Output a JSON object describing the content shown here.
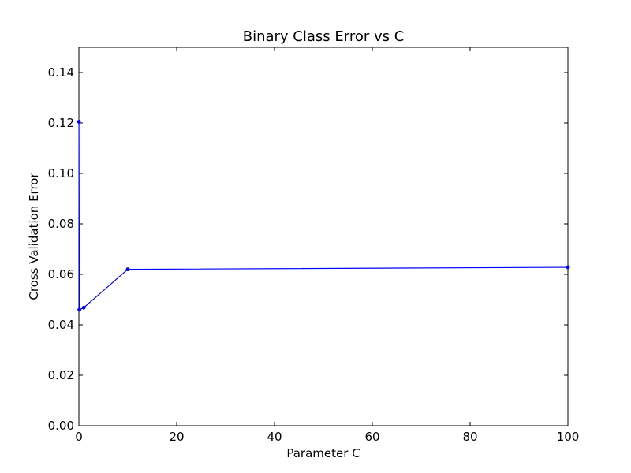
{
  "chart_data": {
    "type": "line",
    "title": "Binary Class Error vs C",
    "xlabel": "Parameter C",
    "ylabel": "Cross Validation Error",
    "xlim": [
      0,
      100
    ],
    "ylim": [
      0.0,
      0.15
    ],
    "xticks": [
      0,
      20,
      40,
      60,
      80,
      100
    ],
    "xtick_labels": [
      "0",
      "20",
      "40",
      "60",
      "80",
      "100"
    ],
    "yticks": [
      0.0,
      0.02,
      0.04,
      0.06,
      0.08,
      0.1,
      0.12,
      0.14
    ],
    "ytick_labels": [
      "0.00",
      "0.02",
      "0.04",
      "0.06",
      "0.08",
      "0.10",
      "0.12",
      "0.14"
    ],
    "grid": false,
    "legend": "none",
    "series": [
      {
        "color": "#0000ff",
        "x": [
          0.01,
          0.1,
          1,
          10,
          100
        ],
        "y": [
          0.1205,
          0.046,
          0.0468,
          0.062,
          0.0628
        ]
      }
    ]
  }
}
